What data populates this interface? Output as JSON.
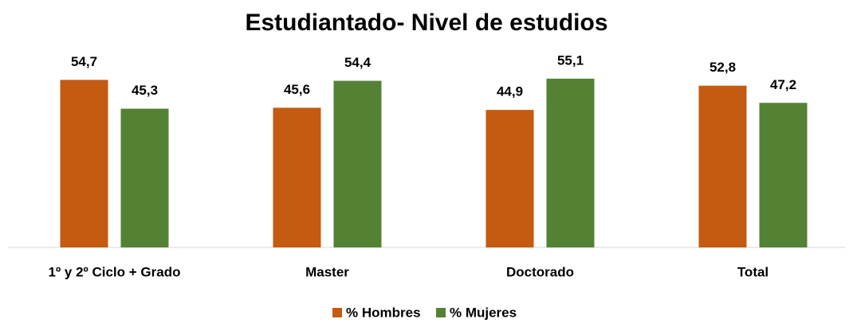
{
  "chart_data": {
    "type": "bar",
    "title": "Estudiantado- Nivel de estudios",
    "categories": [
      "1º y 2º Ciclo + Grado",
      "Master",
      "Doctorado",
      "Total"
    ],
    "series": [
      {
        "name": "% Hombres",
        "color": "#c55a11",
        "values": [
          54.7,
          45.6,
          44.9,
          52.8
        ],
        "value_labels": [
          "54,7",
          "45,6",
          "44,9",
          "52,8"
        ]
      },
      {
        "name": "% Mujeres",
        "color": "#548235",
        "values": [
          45.3,
          54.4,
          55.1,
          47.2
        ],
        "value_labels": [
          "45,3",
          "54,4",
          "55,1",
          "47,2"
        ]
      }
    ],
    "ylim": [
      0,
      60
    ],
    "legend": "bottom"
  }
}
